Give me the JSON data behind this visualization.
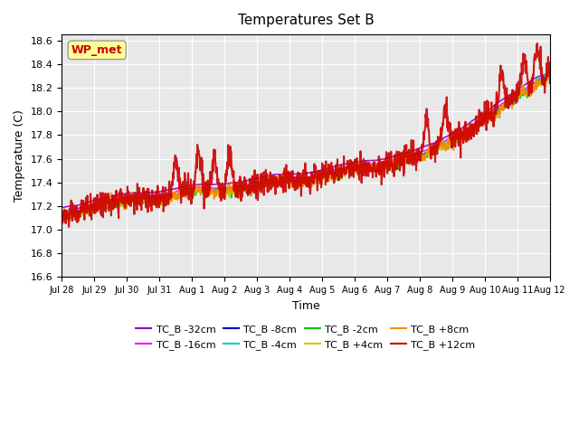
{
  "title": "Temperatures Set B",
  "xlabel": "Time",
  "ylabel": "Temperature (C)",
  "ylim": [
    16.6,
    18.65
  ],
  "x_labels": [
    "Jul 28",
    "Jul 29",
    "Jul 30",
    "Jul 31",
    "Aug 1",
    "Aug 2",
    "Aug 3",
    "Aug 4",
    "Aug 5",
    "Aug 6",
    "Aug 7",
    "Aug 8",
    "Aug 9",
    "Aug 10",
    "Aug 11",
    "Aug 12"
  ],
  "annotation_text": "WP_met",
  "annotation_color": "#cc0000",
  "annotation_bg": "#ffff99",
  "series_labels": [
    "TC_B -32cm",
    "TC_B -16cm",
    "TC_B -8cm",
    "TC_B -4cm",
    "TC_B -2cm",
    "TC_B +4cm",
    "TC_B +8cm",
    "TC_B +12cm"
  ],
  "series_colors": [
    "#9900cc",
    "#ff00ff",
    "#0000cc",
    "#00cccc",
    "#00cc00",
    "#cccc00",
    "#ff8800",
    "#cc0000"
  ],
  "series_linewidths": [
    1.2,
    1.2,
    1.5,
    1.2,
    1.2,
    1.2,
    1.2,
    1.5
  ],
  "plot_bg_color": "#e8e8e8",
  "n_points": 1440
}
